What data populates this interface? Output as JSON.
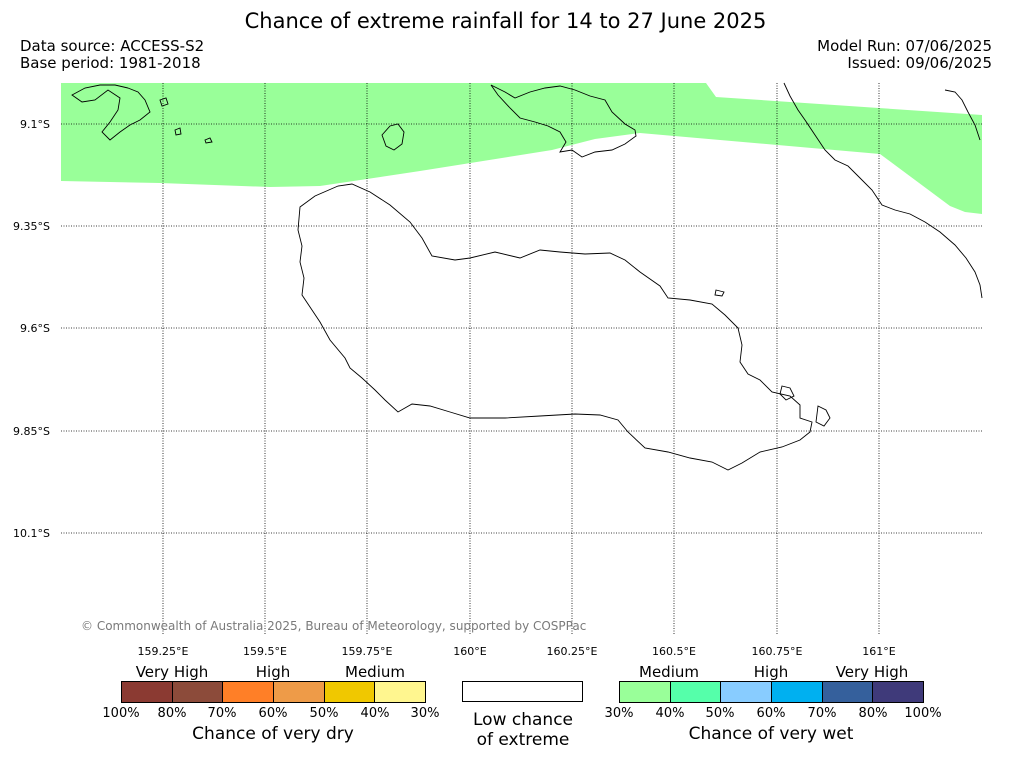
{
  "title": "Chance of extreme rainfall for 14 to 27 June 2025",
  "data_source": "Data source: ACCESS-S2",
  "base_period": "Base period: 1981-2018",
  "model_run": "Model Run: 07/06/2025",
  "issued": "Issued: 09/06/2025",
  "copyright": "© Commonwealth of Australia 2025, Bureau of Meteorology, supported by COSPPac",
  "latitude_labels": [
    "9.1°S",
    "9.35°S",
    "9.6°S",
    "9.85°S",
    "10.1°S"
  ],
  "longitude_labels": [
    "159.25°E",
    "159.5°E",
    "159.75°E",
    "160°E",
    "160.25°E",
    "160.5°E",
    "160.75°E",
    "161°E"
  ],
  "dry_legend": {
    "title": "Chance of very dry",
    "categories": [
      "Very High",
      "High",
      "Medium"
    ],
    "percents": [
      "100%",
      "80%",
      "70%",
      "60%",
      "50%",
      "40%",
      "30%"
    ],
    "colors": [
      "#8b3a32",
      "#8c4b3a",
      "#ff7f27",
      "#ee9b48",
      "#f0c800",
      "#fff68f"
    ]
  },
  "neutral_legend": {
    "label_line1": "Low chance",
    "label_line2": "of extreme",
    "color": "#ffffff"
  },
  "wet_legend": {
    "title": "Chance of very wet",
    "categories": [
      "Medium",
      "High",
      "Very High"
    ],
    "percents": [
      "30%",
      "40%",
      "50%",
      "60%",
      "70%",
      "80%",
      "100%"
    ],
    "colors": [
      "#99ff99",
      "#55ffaa",
      "#88ccff",
      "#00b0f0",
      "#35609c",
      "#3f3a7a"
    ]
  },
  "map_region": {
    "wet_medium_color": "#99ff99",
    "coastline_color": "#000000",
    "grid_color": "#000000"
  }
}
